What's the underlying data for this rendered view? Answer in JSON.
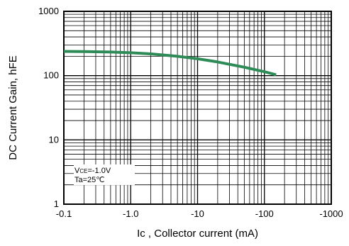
{
  "chart_data": {
    "type": "line",
    "title": "",
    "xlabel_main": "Ic",
    "xlabel_rest": " , Collector current (mA)",
    "ylabel": "DC Current Gain, hFE",
    "x_scale": "log",
    "y_scale": "log",
    "x_direction": "negative",
    "xlim": [
      -0.1,
      -1000
    ],
    "ylim": [
      1,
      1000
    ],
    "grid": true,
    "x_ticks": [
      {
        "value": -0.1,
        "label": "-0.1"
      },
      {
        "value": -1,
        "label": "-1.0"
      },
      {
        "value": -10,
        "label": "-10"
      },
      {
        "value": -100,
        "label": "-100"
      },
      {
        "value": -1000,
        "label": "-1000"
      }
    ],
    "y_ticks": [
      {
        "value": 1,
        "label": "1"
      },
      {
        "value": 10,
        "label": "10"
      },
      {
        "value": 100,
        "label": "100"
      },
      {
        "value": 1000,
        "label": "1000"
      }
    ],
    "series": [
      {
        "color": "#2e8b57",
        "x": [
          -0.1,
          -0.2,
          -0.5,
          -1,
          -2,
          -5,
          -10,
          -20,
          -50,
          -100,
          -150
        ],
        "y": [
          238,
          237,
          233,
          227,
          218,
          200,
          183,
          163,
          135,
          115,
          103
        ]
      }
    ],
    "annotation": {
      "vce_main": "V",
      "vce_sub": "CE",
      "vce_rest": "=-1.0V",
      "ta": "Ta=25℃"
    }
  }
}
